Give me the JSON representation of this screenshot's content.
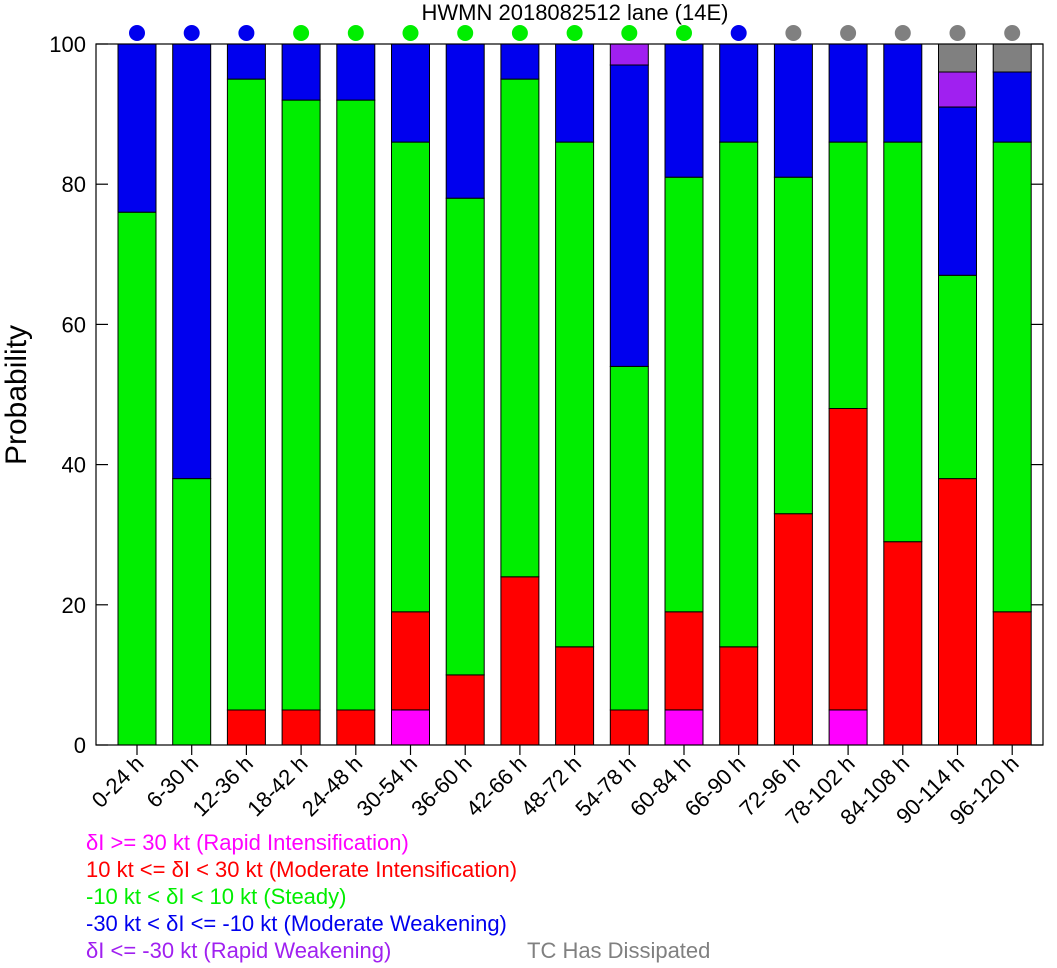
{
  "chart_data": {
    "type": "bar",
    "stacked": true,
    "title": "HWMN 2018082512 lane (14E)",
    "ylabel": "Probability",
    "xlabel": "",
    "ylim": [
      0,
      100
    ],
    "yticks": [
      0,
      20,
      40,
      60,
      80,
      100
    ],
    "grid": false,
    "categories": [
      "0-24 h",
      "6-30 h",
      "12-36 h",
      "18-42 h",
      "24-48 h",
      "30-54 h",
      "36-60 h",
      "42-66 h",
      "48-72 h",
      "54-78 h",
      "60-84 h",
      "66-90 h",
      "72-96 h",
      "78-102 h",
      "84-108 h",
      "90-114 h",
      "96-120 h"
    ],
    "series": [
      {
        "key": "ri",
        "color": "#ff00ff",
        "values": [
          0,
          0,
          0,
          0,
          0,
          5,
          0,
          0,
          0,
          0,
          5,
          0,
          0,
          5,
          0,
          0,
          0
        ]
      },
      {
        "key": "mi",
        "color": "#ff0000",
        "values": [
          0,
          0,
          5,
          5,
          5,
          14,
          10,
          24,
          14,
          5,
          14,
          14,
          33,
          43,
          29,
          38,
          19
        ]
      },
      {
        "key": "steady",
        "color": "#00ee00",
        "values": [
          76,
          38,
          90,
          87,
          87,
          67,
          68,
          71,
          72,
          49,
          62,
          72,
          48,
          38,
          57,
          29,
          67
        ]
      },
      {
        "key": "mw",
        "color": "#0000ee",
        "values": [
          24,
          62,
          5,
          8,
          8,
          14,
          22,
          5,
          14,
          43,
          19,
          14,
          19,
          14,
          14,
          24,
          10
        ]
      },
      {
        "key": "rw",
        "color": "#a020f0",
        "values": [
          0,
          0,
          0,
          0,
          0,
          0,
          0,
          0,
          0,
          3,
          0,
          0,
          0,
          0,
          0,
          5,
          0
        ]
      },
      {
        "key": "dissipated",
        "color": "#808080",
        "values": [
          0,
          0,
          0,
          0,
          0,
          0,
          0,
          0,
          0,
          0,
          0,
          0,
          0,
          0,
          0,
          4,
          4
        ]
      }
    ],
    "top_dots": [
      "#0000ee",
      "#0000ee",
      "#0000ee",
      "#00ee00",
      "#00ee00",
      "#00ee00",
      "#00ee00",
      "#00ee00",
      "#00ee00",
      "#00ee00",
      "#00ee00",
      "#0000ee",
      "#808080",
      "#808080",
      "#808080",
      "#808080",
      "#808080"
    ],
    "legend": [
      {
        "text": "δI >= 30 kt (Rapid Intensification)",
        "color": "#ff00ff"
      },
      {
        "text": "10 kt <= δI < 30 kt (Moderate Intensification)",
        "color": "#ff0000"
      },
      {
        "text": "-10 kt < δI < 10 kt (Steady)",
        "color": "#00ee00"
      },
      {
        "text": "-30 kt < δI <= -10 kt (Moderate Weakening)",
        "color": "#0000ee"
      },
      {
        "text": "δI <= -30 kt (Rapid Weakening)",
        "color": "#a020f0"
      },
      {
        "text": "TC Has Dissipated",
        "color": "#808080"
      }
    ]
  }
}
